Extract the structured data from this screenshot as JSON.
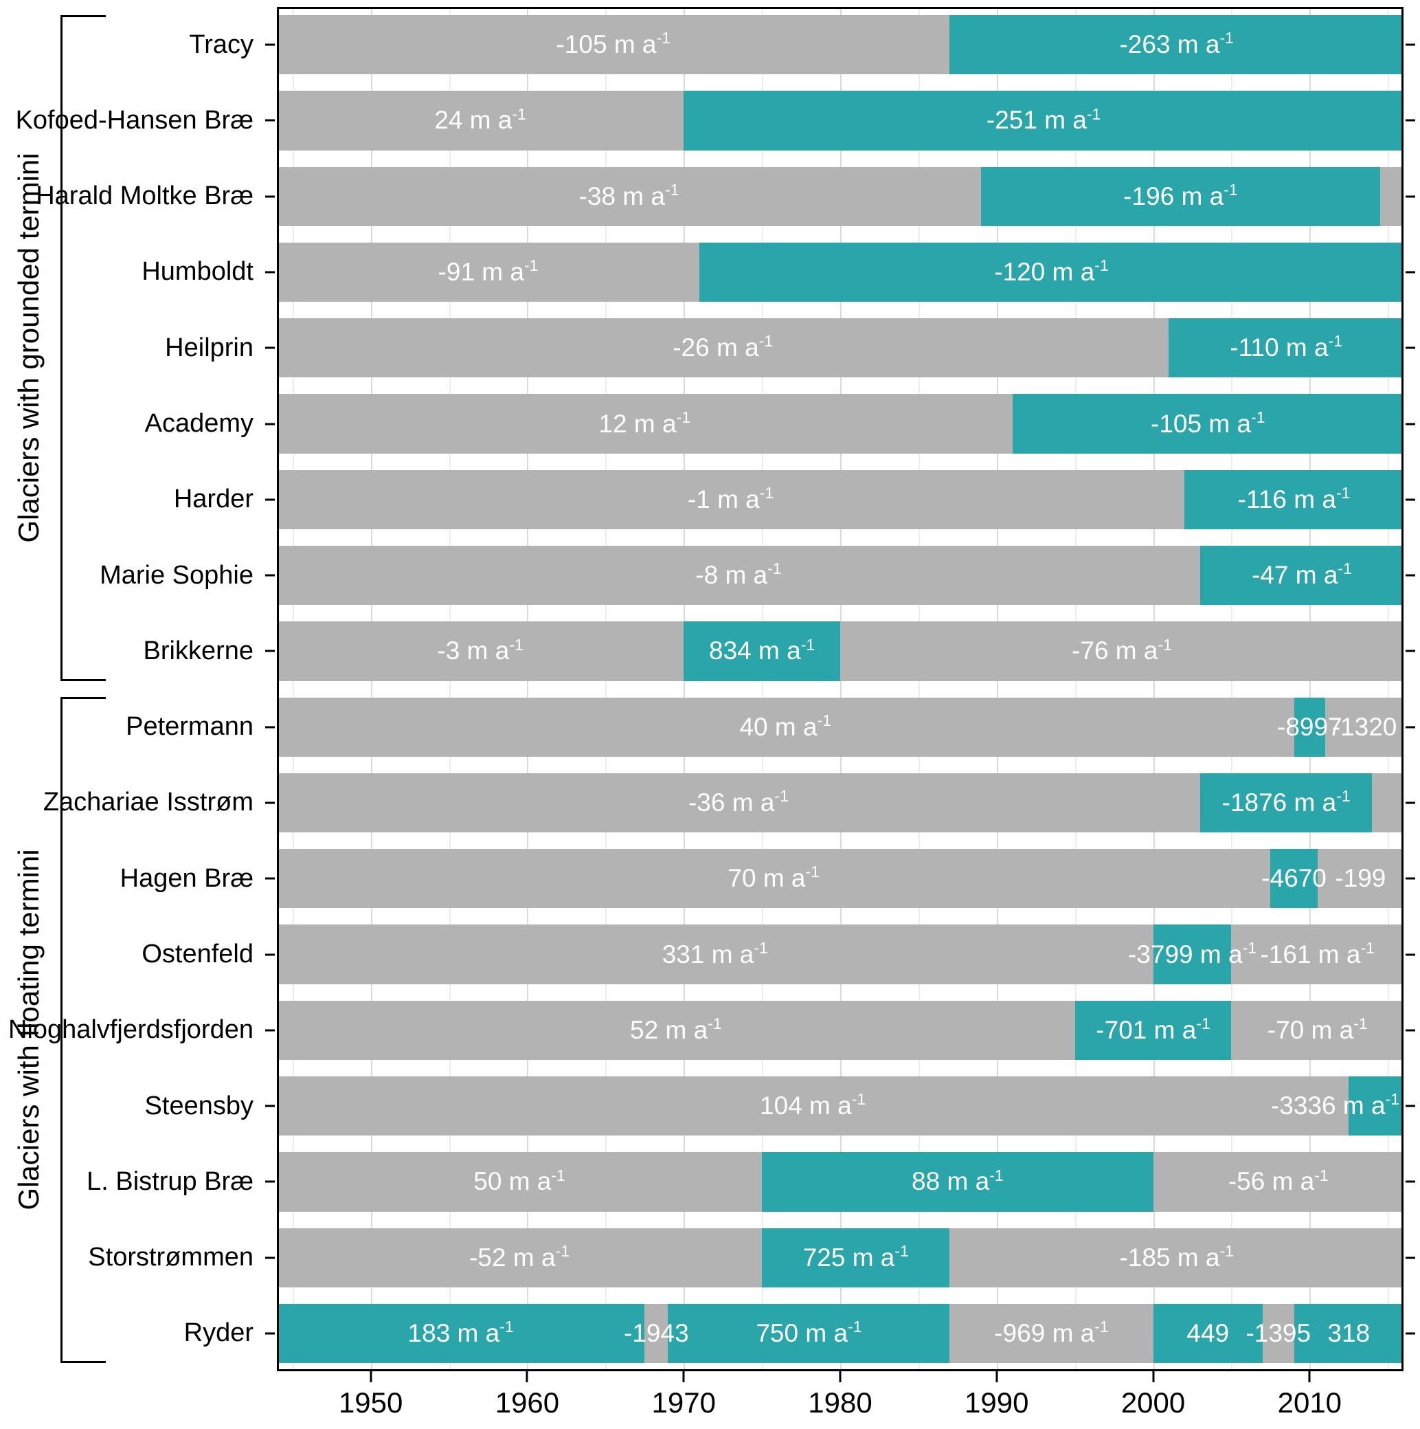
{
  "chart_data": {
    "type": "bar",
    "subtype": "horizontal-segmented-timeline",
    "title": "",
    "unit_text": "m a",
    "unit_sup": "-1",
    "x_axis": {
      "range": [
        1944,
        2016
      ],
      "major_ticks": [
        1950,
        1960,
        1970,
        1980,
        1990,
        2000,
        2010
      ],
      "minor_ticks": [
        1945,
        1955,
        1965,
        1975,
        1985,
        1995,
        2005,
        2015
      ],
      "tick_labels": [
        "1950",
        "1960",
        "1970",
        "1980",
        "1990",
        "2000",
        "2010"
      ]
    },
    "colors": {
      "gray": "#b3b3b3",
      "teal": "#2aa5aa",
      "grid_major": "#d9d9d9",
      "grid_minor": "#ededed",
      "label": "#ffffff"
    },
    "groups": [
      {
        "label": "Glaciers with grounded termini",
        "glaciers": [
          {
            "name": "Tracy",
            "segments": [
              {
                "start": 1944,
                "end": 1987,
                "color": "gray",
                "rate": "-105",
                "per_year": true
              },
              {
                "start": 1987,
                "end": 2016,
                "color": "teal",
                "rate": "-263",
                "per_year": true
              }
            ]
          },
          {
            "name": "Kofoed-Hansen Bræ",
            "segments": [
              {
                "start": 1944,
                "end": 1970,
                "color": "gray",
                "rate": "24",
                "per_year": true
              },
              {
                "start": 1970,
                "end": 2016,
                "color": "teal",
                "rate": "-251",
                "per_year": true
              }
            ]
          },
          {
            "name": "Harald Moltke Bræ",
            "segments": [
              {
                "start": 1944,
                "end": 1989,
                "color": "gray",
                "rate": "-38",
                "per_year": true
              },
              {
                "start": 1989,
                "end": 2014.5,
                "color": "teal",
                "rate": "-196",
                "per_year": true
              },
              {
                "start": 2014.5,
                "end": 2016,
                "color": "gray",
                "rate": "",
                "per_year": false
              }
            ]
          },
          {
            "name": "Humboldt",
            "segments": [
              {
                "start": 1944,
                "end": 1971,
                "color": "gray",
                "rate": "-91",
                "per_year": true
              },
              {
                "start": 1971,
                "end": 2016,
                "color": "teal",
                "rate": "-120",
                "per_year": true
              }
            ]
          },
          {
            "name": "Heilprin",
            "segments": [
              {
                "start": 1944,
                "end": 2001,
                "color": "gray",
                "rate": "-26",
                "per_year": true
              },
              {
                "start": 2001,
                "end": 2016,
                "color": "teal",
                "rate": "-110",
                "per_year": true
              }
            ]
          },
          {
            "name": "Academy",
            "segments": [
              {
                "start": 1944,
                "end": 1991,
                "color": "gray",
                "rate": "12",
                "per_year": true
              },
              {
                "start": 1991,
                "end": 2016,
                "color": "teal",
                "rate": "-105",
                "per_year": true
              }
            ]
          },
          {
            "name": "Harder",
            "segments": [
              {
                "start": 1944,
                "end": 2002,
                "color": "gray",
                "rate": "-1",
                "per_year": true
              },
              {
                "start": 2002,
                "end": 2016,
                "color": "teal",
                "rate": "-116",
                "per_year": true
              }
            ]
          },
          {
            "name": "Marie Sophie",
            "segments": [
              {
                "start": 1944,
                "end": 2003,
                "color": "gray",
                "rate": "-8",
                "per_year": true
              },
              {
                "start": 2003,
                "end": 2016,
                "color": "teal",
                "rate": "-47",
                "per_year": true
              }
            ]
          },
          {
            "name": "Brikkerne",
            "segments": [
              {
                "start": 1944,
                "end": 1970,
                "color": "gray",
                "rate": "-3",
                "per_year": true
              },
              {
                "start": 1970,
                "end": 1980,
                "color": "teal",
                "rate": "834",
                "per_year": true
              },
              {
                "start": 1980,
                "end": 2016,
                "color": "gray",
                "rate": "-76",
                "per_year": true
              }
            ]
          }
        ]
      },
      {
        "label": "Glaciers with floating termini",
        "glaciers": [
          {
            "name": "Petermann",
            "segments": [
              {
                "start": 1944,
                "end": 2009,
                "color": "gray",
                "rate": "40",
                "per_year": true
              },
              {
                "start": 2009,
                "end": 2011,
                "color": "teal",
                "rate": "-8997",
                "per_year": false
              },
              {
                "start": 2011,
                "end": 2016,
                "color": "gray",
                "rate": "-1320",
                "per_year": false
              }
            ]
          },
          {
            "name": "Zachariae Isstrøm",
            "segments": [
              {
                "start": 1944,
                "end": 2003,
                "color": "gray",
                "rate": "-36",
                "per_year": true
              },
              {
                "start": 2003,
                "end": 2014,
                "color": "teal",
                "rate": "-1876",
                "per_year": true
              },
              {
                "start": 2014,
                "end": 2016,
                "color": "gray",
                "rate": "",
                "per_year": false
              }
            ]
          },
          {
            "name": "Hagen Bræ",
            "segments": [
              {
                "start": 1944,
                "end": 2007.5,
                "color": "gray",
                "rate": "70",
                "per_year": true
              },
              {
                "start": 2007.5,
                "end": 2010.5,
                "color": "teal",
                "rate": "-4670",
                "per_year": false
              },
              {
                "start": 2010.5,
                "end": 2016,
                "color": "gray",
                "rate": "-199",
                "per_year": false
              }
            ]
          },
          {
            "name": "Ostenfeld",
            "segments": [
              {
                "start": 1944,
                "end": 2000,
                "color": "gray",
                "rate": "331",
                "per_year": true
              },
              {
                "start": 2000,
                "end": 2005,
                "color": "teal",
                "rate": "-3799",
                "per_year": true
              },
              {
                "start": 2005,
                "end": 2016,
                "color": "gray",
                "rate": "-161",
                "per_year": true
              }
            ]
          },
          {
            "name": "Nioghalvfjerdsfjorden",
            "segments": [
              {
                "start": 1944,
                "end": 1995,
                "color": "gray",
                "rate": "52",
                "per_year": true
              },
              {
                "start": 1995,
                "end": 2005,
                "color": "teal",
                "rate": "-701",
                "per_year": true
              },
              {
                "start": 2005,
                "end": 2016,
                "color": "gray",
                "rate": "-70",
                "per_year": true
              }
            ]
          },
          {
            "name": "Steensby",
            "segments": [
              {
                "start": 1944,
                "end": 2012.5,
                "color": "gray",
                "rate": "104",
                "per_year": true
              },
              {
                "start": 2012.5,
                "end": 2016,
                "color": "teal",
                "rate": "-3336",
                "per_year": true,
                "align": "end"
              }
            ]
          },
          {
            "name": "L. Bistrup Bræ",
            "segments": [
              {
                "start": 1944,
                "end": 1975,
                "color": "gray",
                "rate": "50",
                "per_year": true
              },
              {
                "start": 1975,
                "end": 2000,
                "color": "teal",
                "rate": "88",
                "per_year": true
              },
              {
                "start": 2000,
                "end": 2016,
                "color": "gray",
                "rate": "-56",
                "per_year": true
              }
            ]
          },
          {
            "name": "Storstrømmen",
            "segments": [
              {
                "start": 1944,
                "end": 1975,
                "color": "gray",
                "rate": "-52",
                "per_year": true
              },
              {
                "start": 1975,
                "end": 1987,
                "color": "teal",
                "rate": "725",
                "per_year": true
              },
              {
                "start": 1987,
                "end": 2016,
                "color": "gray",
                "rate": "-185",
                "per_year": true
              }
            ]
          },
          {
            "name": "Ryder",
            "segments": [
              {
                "start": 1944,
                "end": 1967.5,
                "color": "teal",
                "rate": "183",
                "per_year": true
              },
              {
                "start": 1967.5,
                "end": 1969,
                "color": "gray",
                "rate": "-1943",
                "per_year": false
              },
              {
                "start": 1969,
                "end": 1987,
                "color": "teal",
                "rate": "750",
                "per_year": true
              },
              {
                "start": 1987,
                "end": 2000,
                "color": "gray",
                "rate": "-969",
                "per_year": true
              },
              {
                "start": 2000,
                "end": 2007,
                "color": "teal",
                "rate": "449",
                "per_year": false
              },
              {
                "start": 2007,
                "end": 2009,
                "color": "gray",
                "rate": "-1395",
                "per_year": false
              },
              {
                "start": 2009,
                "end": 2016,
                "color": "teal",
                "rate": "318",
                "per_year": false
              }
            ]
          }
        ]
      }
    ]
  }
}
